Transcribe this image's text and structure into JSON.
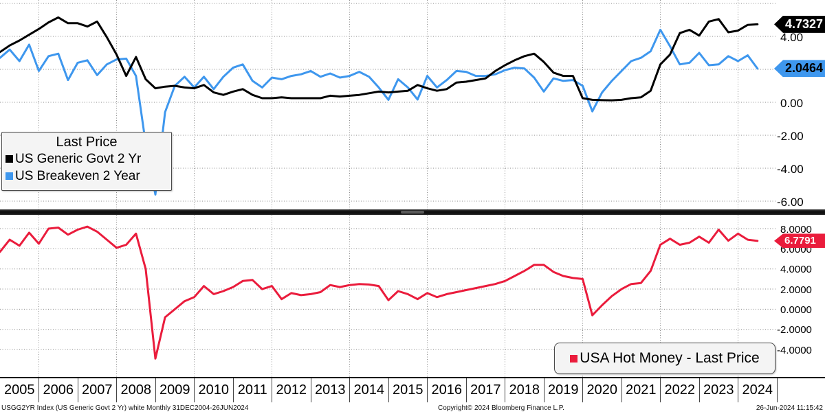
{
  "chart_data": [
    {
      "type": "line",
      "panel": "top",
      "title": "Last Price",
      "x_start": 2005.0,
      "x_step": 0.25,
      "x_range": [
        2005,
        2025
      ],
      "ylim": [
        -6.4,
        6.4
      ],
      "grid": "dotted",
      "legend_position": "middle-left",
      "y_ticks": [
        {
          "value": 6,
          "label": ""
        },
        {
          "value": 4,
          "label": "4.00"
        },
        {
          "value": 2,
          "label": ""
        },
        {
          "value": 0,
          "label": "0.00"
        },
        {
          "value": -2,
          "label": "-2.00"
        },
        {
          "value": -4,
          "label": "-4.00"
        },
        {
          "value": -6,
          "label": "-6.00"
        }
      ],
      "series": [
        {
          "name": "US Generic Govt 2 Yr",
          "color": "#000000",
          "last_price": "4.7327",
          "badge_fg": "#ffffff",
          "values": [
            3.05,
            3.45,
            3.75,
            4.1,
            4.45,
            4.85,
            5.15,
            4.8,
            4.8,
            4.6,
            4.9,
            3.95,
            2.9,
            1.6,
            2.75,
            1.4,
            0.85,
            0.95,
            1.0,
            0.9,
            0.85,
            1.05,
            0.6,
            0.45,
            0.65,
            0.8,
            0.45,
            0.25,
            0.25,
            0.3,
            0.25,
            0.25,
            0.25,
            0.25,
            0.4,
            0.35,
            0.4,
            0.45,
            0.55,
            0.65,
            0.6,
            0.65,
            0.7,
            1.05,
            0.85,
            0.7,
            0.8,
            1.2,
            1.25,
            1.35,
            1.45,
            1.9,
            2.25,
            2.55,
            2.8,
            2.95,
            2.45,
            1.8,
            1.6,
            1.6,
            0.25,
            0.15,
            0.13,
            0.12,
            0.15,
            0.25,
            0.3,
            0.7,
            2.3,
            2.9,
            4.2,
            4.4,
            4.05,
            4.9,
            5.05,
            4.25,
            4.35,
            4.7,
            4.7327
          ]
        },
        {
          "name": "US Breakeven 2 Year",
          "color": "#3e97ee",
          "last_price": "2.0464",
          "badge_fg": "#000000",
          "values": [
            2.7,
            3.2,
            2.5,
            3.5,
            1.9,
            2.8,
            2.95,
            1.35,
            2.4,
            2.55,
            1.65,
            2.3,
            2.6,
            2.65,
            1.6,
            -2.5,
            -5.6,
            -0.6,
            1.0,
            1.55,
            0.9,
            1.55,
            0.8,
            1.55,
            2.1,
            2.3,
            1.3,
            0.9,
            1.5,
            1.4,
            1.6,
            1.7,
            1.9,
            1.55,
            1.75,
            1.5,
            1.6,
            1.85,
            1.55,
            0.9,
            0.15,
            1.4,
            0.9,
            0.17,
            1.6,
            0.9,
            1.35,
            1.9,
            1.85,
            1.6,
            1.6,
            1.7,
            1.95,
            2.1,
            2.05,
            1.5,
            0.65,
            1.45,
            1.3,
            1.35,
            1.0,
            -0.55,
            0.6,
            1.3,
            1.9,
            2.5,
            2.7,
            3.1,
            4.4,
            3.4,
            2.3,
            2.4,
            3.0,
            2.25,
            2.3,
            2.8,
            2.5,
            2.85,
            2.0464
          ]
        }
      ]
    },
    {
      "type": "line",
      "panel": "bottom",
      "legend_label": "USA Hot Money - Last Price",
      "x_start": 2005.0,
      "x_step": 0.25,
      "x_range": [
        2005,
        2025
      ],
      "ylim": [
        -5.5,
        8.8
      ],
      "grid": "dotted",
      "legend_position": "bottom-right",
      "y_ticks": [
        {
          "value": 8,
          "label": "8.0000"
        },
        {
          "value": 6,
          "label": "6.0000"
        },
        {
          "value": 4,
          "label": "4.0000"
        },
        {
          "value": 2,
          "label": "2.0000"
        },
        {
          "value": 0,
          "label": "0.0000"
        },
        {
          "value": -2,
          "label": "-2.0000"
        },
        {
          "value": -4,
          "label": "-4.0000"
        }
      ],
      "series": [
        {
          "name": "USA Hot Money",
          "color": "#ea1c3c",
          "last_price": "6.7791",
          "badge_fg": "#ffffff",
          "values": [
            5.7,
            6.9,
            6.3,
            7.6,
            6.5,
            8.0,
            8.1,
            7.4,
            7.9,
            8.2,
            7.7,
            6.9,
            6.1,
            6.4,
            7.5,
            4.0,
            -4.9,
            -0.8,
            0.0,
            0.8,
            1.2,
            2.3,
            1.5,
            1.8,
            2.2,
            2.8,
            2.9,
            2.0,
            2.3,
            1.0,
            1.6,
            1.4,
            1.5,
            1.7,
            2.4,
            2.2,
            2.4,
            2.5,
            2.45,
            2.3,
            0.9,
            1.8,
            1.5,
            1.0,
            1.6,
            1.2,
            1.5,
            1.7,
            1.9,
            2.1,
            2.3,
            2.5,
            2.8,
            3.3,
            3.8,
            4.4,
            4.4,
            3.7,
            3.3,
            3.1,
            3.0,
            -0.6,
            0.4,
            1.3,
            2.0,
            2.5,
            2.6,
            3.8,
            6.4,
            7.0,
            6.4,
            6.6,
            7.2,
            6.6,
            7.9,
            6.8,
            7.5,
            6.9,
            6.7791
          ]
        }
      ]
    }
  ],
  "x_axis": {
    "years": [
      "2005",
      "2006",
      "2007",
      "2008",
      "2009",
      "2010",
      "2011",
      "2012",
      "2013",
      "2014",
      "2015",
      "2016",
      "2017",
      "2018",
      "2019",
      "2020",
      "2021",
      "2022",
      "2023",
      "2024"
    ]
  },
  "footer": {
    "left": "USGG2YR Index (US Generic Govt 2 Yr) white  Monthly 31DEC2004-26JUN2024",
    "center": "Copyright© 2024 Bloomberg Finance L.P.",
    "right": "26-Jun-2024 11:15:42"
  },
  "colors": {
    "grid": "#8a8a8a",
    "axis": "#000000",
    "divider": "#1b1b1b",
    "legend_bg": "#f4f4f4",
    "legend_border": "#4a4a4a"
  }
}
